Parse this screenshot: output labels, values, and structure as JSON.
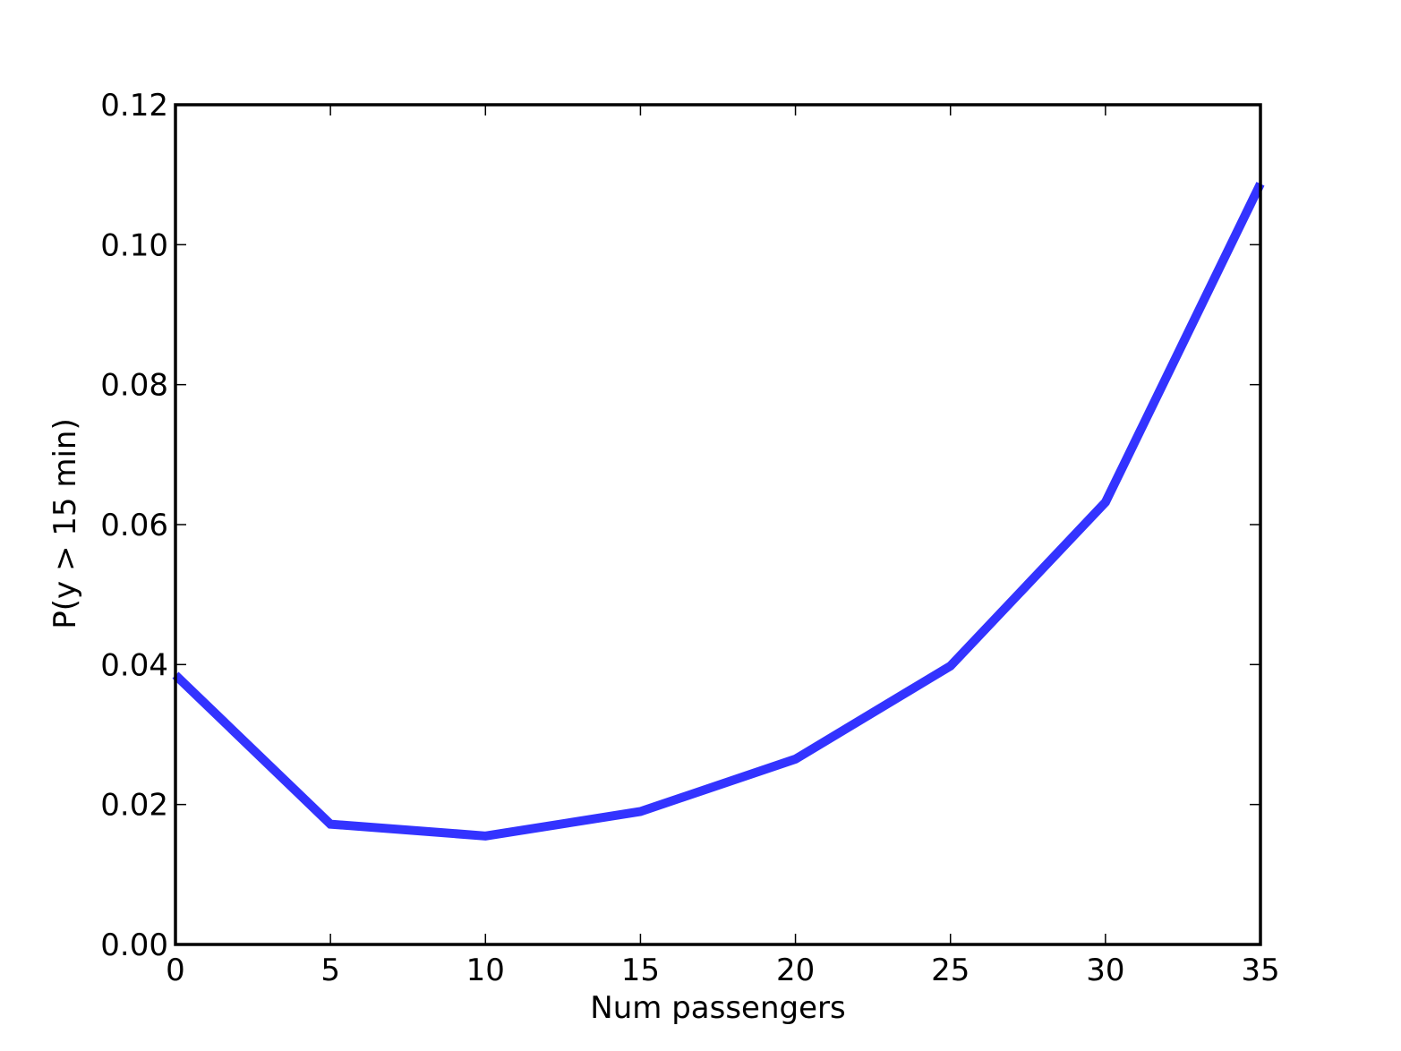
{
  "chart_data": {
    "type": "line",
    "title": "",
    "xlabel": "Num passengers",
    "ylabel": "P(y > 15 min)",
    "xlim": [
      0,
      35
    ],
    "ylim": [
      0,
      0.12
    ],
    "grid": false,
    "legend": "none",
    "x_ticks": [
      "0",
      "5",
      "10",
      "15",
      "20",
      "25",
      "30",
      "35"
    ],
    "y_ticks": [
      "0.00",
      "0.02",
      "0.04",
      "0.06",
      "0.08",
      "0.10",
      "0.12"
    ],
    "series": [
      {
        "color": "#3333ff",
        "x": [
          0,
          5,
          10,
          15,
          20,
          25,
          30,
          35
        ],
        "y": [
          0.0385,
          0.0172,
          0.0155,
          0.019,
          0.0265,
          0.0398,
          0.0632,
          0.1087
        ]
      }
    ]
  }
}
